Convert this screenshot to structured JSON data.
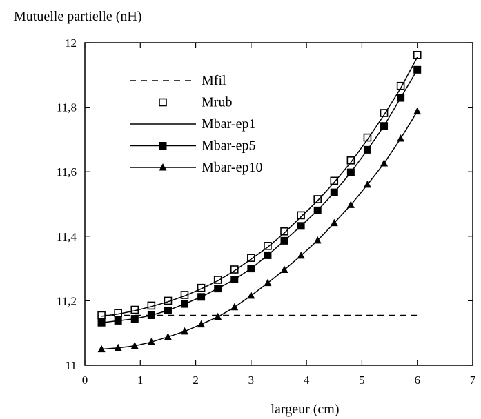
{
  "chart_data": {
    "type": "line",
    "title": "",
    "ylabel": "Mutuelle partielle (nH)",
    "xlabel": "largeur (cm)",
    "xlim": [
      0,
      7
    ],
    "ylim": [
      11,
      12
    ],
    "x_ticks": [
      0,
      1,
      2,
      3,
      4,
      5,
      6,
      7
    ],
    "y_ticks": [
      11,
      11.2,
      11.4,
      11.6,
      11.8,
      12
    ],
    "x_tick_labels": [
      "0",
      "1",
      "2",
      "3",
      "4",
      "5",
      "6",
      "7"
    ],
    "y_tick_labels": [
      "11",
      "11,2",
      "11,4",
      "11,6",
      "11,8",
      "12"
    ],
    "grid": false,
    "legend_position": "top-left",
    "series": [
      {
        "name": "Mfil",
        "style": "dashed",
        "marker": "none",
        "x": [
          0.3,
          6.0
        ],
        "y": [
          11.155,
          11.155
        ]
      },
      {
        "name": "Mrub",
        "style": "none",
        "marker": "open-square",
        "x": [
          0.3,
          0.6,
          0.9,
          1.2,
          1.5,
          1.8,
          2.1,
          2.4,
          2.7,
          3.0,
          3.3,
          3.6,
          3.9,
          4.2,
          4.5,
          4.8,
          5.1,
          5.4,
          5.7,
          6.0
        ],
        "y": [
          11.155,
          11.162,
          11.172,
          11.185,
          11.2,
          11.218,
          11.24,
          11.265,
          11.297,
          11.333,
          11.37,
          11.415,
          11.465,
          11.515,
          11.572,
          11.635,
          11.706,
          11.782,
          11.866,
          11.962
        ]
      },
      {
        "name": "Mbar-ep1",
        "style": "solid",
        "marker": "none",
        "x": [
          0.3,
          0.6,
          0.9,
          1.2,
          1.5,
          1.8,
          2.1,
          2.4,
          2.7,
          3.0,
          3.3,
          3.6,
          3.9,
          4.2,
          4.5,
          4.8,
          5.1,
          5.4,
          5.7,
          6.0
        ],
        "y": [
          11.152,
          11.159,
          11.169,
          11.182,
          11.197,
          11.215,
          11.237,
          11.262,
          11.293,
          11.329,
          11.366,
          11.41,
          11.46,
          11.51,
          11.567,
          11.629,
          11.7,
          11.776,
          11.859,
          11.955
        ]
      },
      {
        "name": "Mbar-ep5",
        "style": "solid",
        "marker": "filled-square",
        "x": [
          0.3,
          0.6,
          0.9,
          1.2,
          1.5,
          1.8,
          2.1,
          2.4,
          2.7,
          3.0,
          3.3,
          3.6,
          3.9,
          4.2,
          4.5,
          4.8,
          5.1,
          5.4,
          5.7,
          6.0
        ],
        "y": [
          11.132,
          11.138,
          11.144,
          11.155,
          11.17,
          11.19,
          11.212,
          11.238,
          11.266,
          11.3,
          11.341,
          11.386,
          11.432,
          11.48,
          11.536,
          11.598,
          11.668,
          11.742,
          11.829,
          11.916
        ]
      },
      {
        "name": "Mbar-ep10",
        "style": "solid",
        "marker": "filled-triangle",
        "x": [
          0.3,
          0.6,
          0.9,
          1.2,
          1.5,
          1.8,
          2.1,
          2.4,
          2.7,
          3.0,
          3.3,
          3.6,
          3.9,
          4.2,
          4.5,
          4.8,
          5.1,
          5.4,
          5.7,
          6.0
        ],
        "y": [
          11.05,
          11.054,
          11.06,
          11.072,
          11.088,
          11.105,
          11.127,
          11.15,
          11.18,
          11.216,
          11.255,
          11.296,
          11.34,
          11.387,
          11.441,
          11.497,
          11.56,
          11.626,
          11.703,
          11.787
        ]
      }
    ]
  }
}
